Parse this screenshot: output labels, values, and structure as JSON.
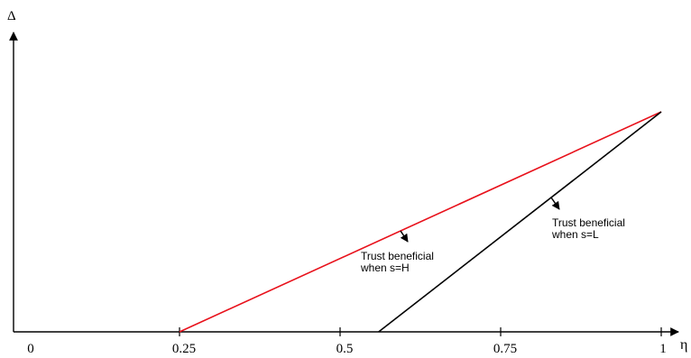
{
  "chart_data": {
    "type": "line",
    "xlabel": "η",
    "ylabel": "Δ",
    "xlim": [
      0,
      1
    ],
    "grid": false,
    "x_ticks": [
      {
        "value": 0,
        "label": "0"
      },
      {
        "value": 0.25,
        "label": "0.25"
      },
      {
        "value": 0.5,
        "label": "0.5"
      },
      {
        "value": 0.75,
        "label": "0.75"
      },
      {
        "value": 1,
        "label": "1"
      }
    ],
    "series": [
      {
        "color": "#e8111b",
        "points": [
          [
            0.25,
            0
          ],
          [
            1,
            1
          ]
        ]
      },
      {
        "color": "#000000",
        "points": [
          [
            0.56,
            0
          ],
          [
            1,
            1
          ]
        ]
      }
    ],
    "annotations": [
      {
        "lines": [
          "Trust beneficial",
          "when s=H"
        ],
        "series_index": 0
      },
      {
        "lines": [
          "Trust beneficial",
          "when s=L"
        ],
        "series_index": 1
      }
    ]
  }
}
